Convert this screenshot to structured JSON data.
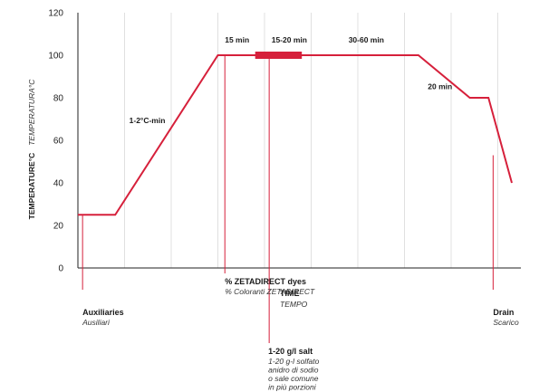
{
  "chart_data": {
    "type": "line",
    "ylabel": "TEMPERATURE°C",
    "ylabel_it": "TEMPERATURA°C",
    "xlabel": "TIME",
    "xlabel_it": "TEMPO",
    "ylim": [
      0,
      120
    ],
    "yticks": [
      0,
      20,
      40,
      60,
      80,
      100,
      120
    ],
    "grid": "vertical",
    "color": "#d6203b",
    "series": [
      {
        "points": [
          {
            "x": 0,
            "y": 25
          },
          {
            "x": 0.8,
            "y": 25
          },
          {
            "x": 3,
            "y": 100
          },
          {
            "x": 6.5,
            "y": 100
          },
          {
            "x": 7.3,
            "y": 100
          },
          {
            "x": 8.4,
            "y": 80
          },
          {
            "x": 8.8,
            "y": 80
          },
          {
            "x": 9.3,
            "y": 40
          }
        ]
      }
    ],
    "salt_dosing_bar": {
      "x_start": 3.8,
      "x_end": 4.8,
      "y": 100
    },
    "segment_labels": [
      {
        "text": "1-2°C-min",
        "x": 1.1,
        "y": 68
      },
      {
        "text": "15 min",
        "x": 3.15,
        "y": 106
      },
      {
        "text": "15-20 min",
        "x": 4.15,
        "y": 106
      },
      {
        "text": "30-60 min",
        "x": 5.8,
        "y": 106
      },
      {
        "text": "20 min",
        "x": 7.5,
        "y": 84
      }
    ],
    "events": [
      {
        "x": 0.1,
        "anchor_y": 25,
        "label_level": 1,
        "title": "Auxiliaries",
        "subtitle": [
          "Ausiliari"
        ]
      },
      {
        "x": 3.15,
        "anchor_y": 100,
        "label_level": 0,
        "title": "% ZETADIRECT dyes",
        "subtitle": [
          "% Coloranti ZETADIRECT"
        ]
      },
      {
        "x": 4.1,
        "anchor_y": 100,
        "label_level": 2,
        "title": "1-20 g/l salt",
        "subtitle": [
          "1-20 g-l solfato",
          "anidro di sodio",
          "o sale comune",
          "in più porzioni"
        ]
      },
      {
        "x": 8.9,
        "anchor_y": 53,
        "label_level": 1,
        "title": "Drain",
        "subtitle": [
          "Scarico"
        ]
      }
    ]
  }
}
